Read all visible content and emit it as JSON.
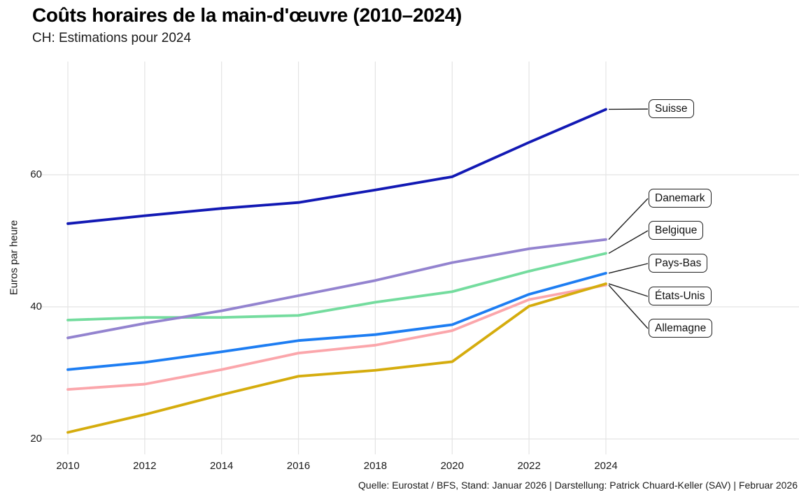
{
  "header": {
    "title": "Coûts horaires de la main-d'œuvre (2010–2024)",
    "subtitle": "CH: Estimations pour 2024"
  },
  "caption": "Quelle: Eurostat / BFS, Stand: Januar 2026 | Darstellung: Patrick Chuard-Keller (SAV) | Februar 2026",
  "chart_data": {
    "type": "line",
    "title": "Coûts horaires de la main-d'œuvre (2010–2024)",
    "subtitle": "CH: Estimations pour 2024",
    "xlabel": "",
    "ylabel": "Euros par heure",
    "x": [
      2010,
      2012,
      2014,
      2016,
      2018,
      2020,
      2022,
      2024
    ],
    "x_ticks": [
      2010,
      2012,
      2014,
      2016,
      2018,
      2020,
      2022,
      2024
    ],
    "y_ticks": [
      20,
      40,
      60
    ],
    "xlim": [
      2010,
      2024
    ],
    "ylim": [
      17,
      77
    ],
    "grid": true,
    "legend_position": "right-edge-labels",
    "grid_color": "#e4e4e4",
    "label_box_border_color": "#1f1f1f",
    "series": [
      {
        "name": "Suisse",
        "color": "#1219b4",
        "values": [
          52.6,
          53.8,
          54.9,
          55.8,
          57.7,
          59.7,
          64.9,
          69.9
        ]
      },
      {
        "name": "Danemark",
        "color": "#9383cf",
        "values": [
          35.3,
          37.5,
          39.4,
          41.7,
          44.0,
          46.7,
          48.8,
          50.2
        ]
      },
      {
        "name": "Belgique",
        "color": "#74dc9e",
        "values": [
          38.0,
          38.4,
          38.4,
          38.7,
          40.7,
          42.3,
          45.4,
          48.1
        ]
      },
      {
        "name": "Pays-Bas",
        "color": "#1d7df2",
        "values": [
          30.5,
          31.6,
          33.2,
          34.9,
          35.8,
          37.3,
          41.9,
          45.1
        ]
      },
      {
        "name": "États-Unis",
        "color": "#d5ac0d",
        "values": [
          21.0,
          23.7,
          26.7,
          29.5,
          30.4,
          31.7,
          40.1,
          43.5
        ]
      },
      {
        "name": "Allemagne",
        "color": "#fba6ab",
        "values": [
          27.5,
          28.3,
          30.5,
          33.0,
          34.2,
          36.4,
          41.1,
          43.3
        ]
      }
    ]
  }
}
